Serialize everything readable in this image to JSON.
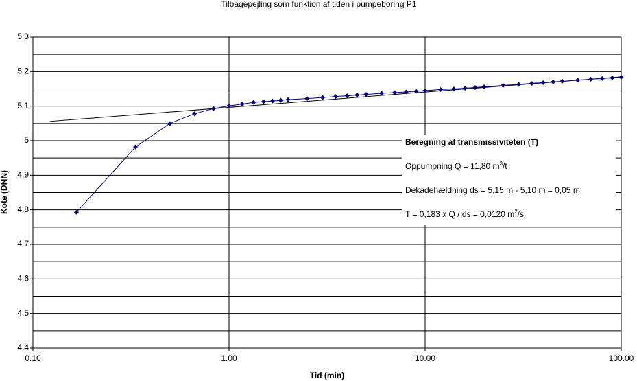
{
  "chart_data": {
    "type": "scatter",
    "title": "Tilbagepejling som funktion af tiden i pumpeboring P1",
    "x_label": "Tid (min)",
    "y_label": "Kote (DNN)",
    "xscale": "log",
    "xlim": [
      0.1,
      100
    ],
    "xticks": [
      {
        "value": 0.1,
        "label": "0.10"
      },
      {
        "value": 1,
        "label": "1.00"
      },
      {
        "value": 10,
        "label": "10.00"
      },
      {
        "value": 100,
        "label": "100.00"
      }
    ],
    "ylim": [
      4.4,
      5.3
    ],
    "yticks": [
      4.4,
      4.5,
      4.6,
      4.7,
      4.8,
      4.9,
      5,
      5.1,
      5.2,
      5.3
    ],
    "y_minor_grid": [
      4.45,
      4.55,
      4.65,
      4.75,
      4.85,
      4.95,
      5.05,
      5.15,
      5.25
    ],
    "grid": true,
    "series": [
      {
        "color": "#000080",
        "x": [
          0.1667,
          0.3333,
          0.5,
          0.6667,
          0.8333,
          1,
          1.1667,
          1.3333,
          1.5,
          1.6667,
          1.8333,
          2,
          2.5,
          3,
          3.5,
          4,
          4.5,
          5,
          6,
          7,
          8,
          9,
          10,
          12,
          14,
          16,
          18,
          20,
          25,
          30,
          35,
          40,
          45,
          50,
          60,
          70,
          80,
          90,
          100
        ],
        "values": [
          4.793,
          4.982,
          5.05,
          5.078,
          5.093,
          5.101,
          5.106,
          5.111,
          5.113,
          5.115,
          5.117,
          5.119,
          5.122,
          5.125,
          5.128,
          5.13,
          5.132,
          5.134,
          5.137,
          5.139,
          5.141,
          5.143,
          5.145,
          5.148,
          5.15,
          5.152,
          5.154,
          5.156,
          5.16,
          5.163,
          5.166,
          5.168,
          5.17,
          5.172,
          5.175,
          5.178,
          5.18,
          5.182,
          5.184
        ]
      }
    ],
    "trendline": {
      "color": "#000000",
      "x": [
        0.122,
        100
      ],
      "values": [
        5.056,
        5.185
      ]
    },
    "annotation": {
      "title": "Beregning af transmissiviteten (T)",
      "lines": [
        [
          "Oppumpning Q = 11,80 m",
          "3",
          "/t"
        ],
        [
          "Dekadehældning ds = 5,15 m - 5,10 m = 0,05 m"
        ],
        [
          "T = 0,183 x Q / ds = 0,0120 m",
          "2",
          "/s"
        ]
      ]
    }
  }
}
